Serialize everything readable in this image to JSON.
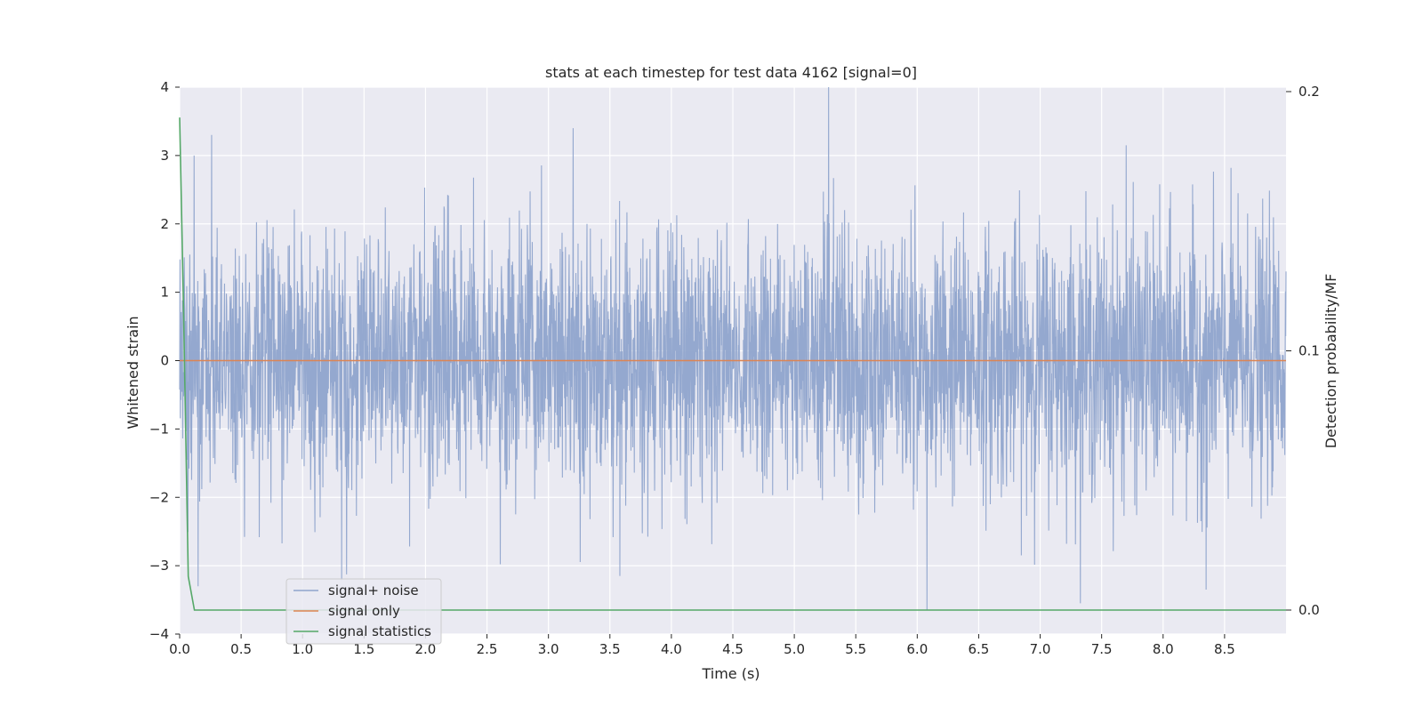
{
  "chart_data": {
    "type": "line",
    "title": "stats at each timestep for test data 4162 [signal=0]",
    "xlabel": "Time (s)",
    "ylabel": "Whitened strain",
    "y2label": "Detection probability/MF",
    "xlim": [
      0.0,
      9.0
    ],
    "ylim": [
      -4.0,
      4.0
    ],
    "y2lim": [
      0.0,
      0.2
    ],
    "xticks": [
      "0.0",
      "0.5",
      "1.0",
      "1.5",
      "2.0",
      "2.5",
      "3.0",
      "3.5",
      "4.0",
      "4.5",
      "5.0",
      "5.5",
      "6.0",
      "6.5",
      "7.0",
      "7.5",
      "8.0",
      "8.5"
    ],
    "yticks": [
      "4",
      "3",
      "2",
      "1",
      "0",
      "−1",
      "−2",
      "−3",
      "−4"
    ],
    "y2ticks": [
      "0.2",
      "0.1",
      "0.0"
    ],
    "grid": true,
    "legend_position": "lower-left",
    "series": [
      {
        "name": "signal+ noise",
        "color": "#8fa4cc",
        "axis": "left",
        "description_values": "whitened noise samples between roughly -3.6 and 4.0",
        "peaks": [
          [
            0.26,
            3.3
          ],
          [
            3.2,
            3.4
          ],
          [
            5.28,
            4.0
          ],
          [
            7.7,
            3.15
          ],
          [
            6.08,
            -3.65
          ],
          [
            3.58,
            -3.15
          ],
          [
            8.35,
            -3.35
          ],
          [
            0.15,
            -3.3
          ]
        ]
      },
      {
        "name": "signal only",
        "color": "#dd8452",
        "axis": "left",
        "x": [
          0.0,
          9.0
        ],
        "y": [
          0.0,
          0.0
        ]
      },
      {
        "name": "signal statistics",
        "color": "#55a868",
        "axis": "right",
        "x": [
          0.0,
          0.03,
          0.07,
          0.12,
          0.5,
          1.0,
          2.0,
          3.0,
          4.0,
          5.0,
          6.0,
          7.0,
          8.0,
          9.0
        ],
        "y": [
          0.19,
          0.12,
          0.013,
          0.0,
          0.0,
          0.0,
          0.0,
          0.0,
          0.0,
          0.0,
          0.0,
          0.0,
          0.0,
          0.0
        ]
      }
    ]
  }
}
